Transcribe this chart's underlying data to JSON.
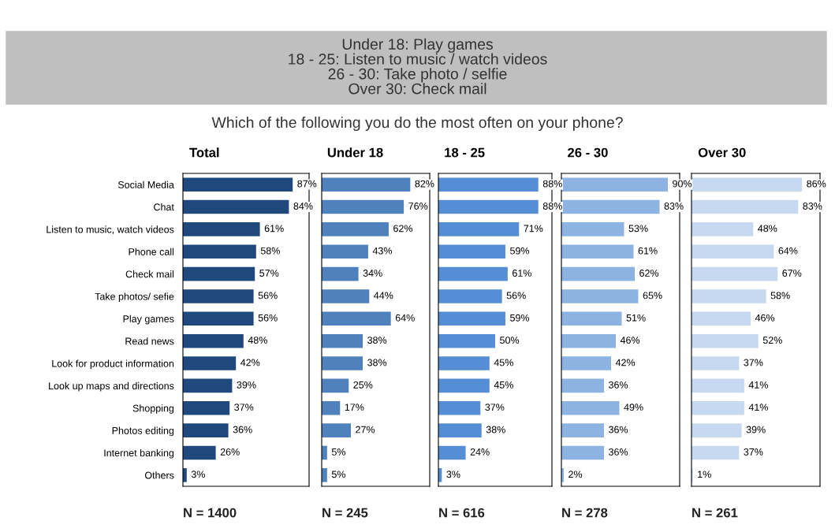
{
  "chart_data": [
    {
      "type": "bar",
      "orientation": "horizontal",
      "title": "Total",
      "subtitle": "Which of the following you do the most often on your phone?",
      "annotations": [
        "Under 18: Play games\n18 - 25: Listen to music / watch videos\n26 - 30: Take photo / selfie\nOver 30: Check mail",
        "N = 1400"
      ],
      "tick_labels": "y",
      "categories": [
        "Social Media",
        "Chat",
        "Listen to music, watch videos",
        "Phone call",
        "Check mail",
        "Take photos/ sefie",
        "Play games",
        "Read news",
        "Look for product information",
        "Look up maps and directions",
        "Shopping",
        "Photos editing",
        "Internet banking",
        "Others"
      ],
      "color": "#1f497d",
      "xlim": [
        0,
        100
      ],
      "values": [
        87,
        84,
        61,
        58,
        57,
        56,
        56,
        48,
        42,
        39,
        37,
        36,
        26,
        3
      ],
      "value_labels": [
        "87%",
        "84%",
        "61%",
        "58%",
        "57%",
        "56%",
        "56%",
        "48%",
        "42%",
        "39%",
        "37%",
        "36%",
        "26%",
        "3%"
      ]
    },
    {
      "type": "bar",
      "orientation": "horizontal",
      "title": "Under 18",
      "annotations": [
        "N = 245"
      ],
      "tick_labels": false,
      "categories": [
        null,
        null,
        null,
        null,
        null,
        null,
        null,
        null,
        null,
        null,
        null,
        null,
        null,
        null
      ],
      "color": "#4f81bd",
      "xlim": [
        0,
        100
      ],
      "values": [
        82,
        76,
        62,
        43,
        34,
        44,
        64,
        38,
        38,
        25,
        17,
        27,
        5,
        5
      ],
      "value_labels": [
        "82%",
        "76%",
        "62%",
        "43%",
        "34%",
        "44%",
        "64%",
        "38%",
        "38%",
        "25%",
        "17%",
        "27%",
        "5%",
        "5%"
      ]
    },
    {
      "type": "bar",
      "orientation": "horizontal",
      "title": "18 - 25",
      "annotations": [
        "N = 616"
      ],
      "tick_labels": false,
      "categories": [
        null,
        null,
        null,
        null,
        null,
        null,
        null,
        null,
        null,
        null,
        null,
        null,
        null,
        null
      ],
      "color": "#558ed5",
      "xlim": [
        0,
        100
      ],
      "values": [
        88,
        88,
        71,
        59,
        61,
        56,
        59,
        50,
        45,
        45,
        37,
        38,
        24,
        3
      ],
      "value_labels": [
        "88%",
        "88%",
        "71%",
        "59%",
        "61%",
        "56%",
        "59%",
        "50%",
        "45%",
        "45%",
        "37%",
        "38%",
        "24%",
        "3%"
      ]
    },
    {
      "type": "bar",
      "orientation": "horizontal",
      "title": "26 - 30",
      "annotations": [
        "N = 278"
      ],
      "tick_labels": false,
      "categories": [
        null,
        null,
        null,
        null,
        null,
        null,
        null,
        null,
        null,
        null,
        null,
        null,
        null,
        null
      ],
      "color": "#8db3e2",
      "xlim": [
        0,
        100
      ],
      "values": [
        90,
        83,
        53,
        61,
        62,
        65,
        51,
        46,
        42,
        36,
        49,
        36,
        36,
        2
      ],
      "value_labels": [
        "90%",
        "83%",
        "53%",
        "61%",
        "62%",
        "65%",
        "51%",
        "46%",
        "42%",
        "36%",
        "49%",
        "36%",
        "36%",
        "2%"
      ]
    },
    {
      "type": "bar",
      "orientation": "horizontal",
      "title": "Over 30",
      "annotations": [
        "N = 261"
      ],
      "tick_labels": false,
      "categories": [
        null,
        null,
        null,
        null,
        null,
        null,
        null,
        null,
        null,
        null,
        null,
        null,
        null,
        null
      ],
      "color": "#c6d9f1",
      "xlim": [
        0,
        100
      ],
      "values": [
        86,
        83,
        48,
        64,
        67,
        58,
        46,
        52,
        37,
        41,
        41,
        39,
        37,
        1
      ],
      "value_labels": [
        "86%",
        "83%",
        "48%",
        "64%",
        "67%",
        "58%",
        "46%",
        "52%",
        "37%",
        "41%",
        "41%",
        "39%",
        "37%",
        "1%"
      ]
    }
  ]
}
